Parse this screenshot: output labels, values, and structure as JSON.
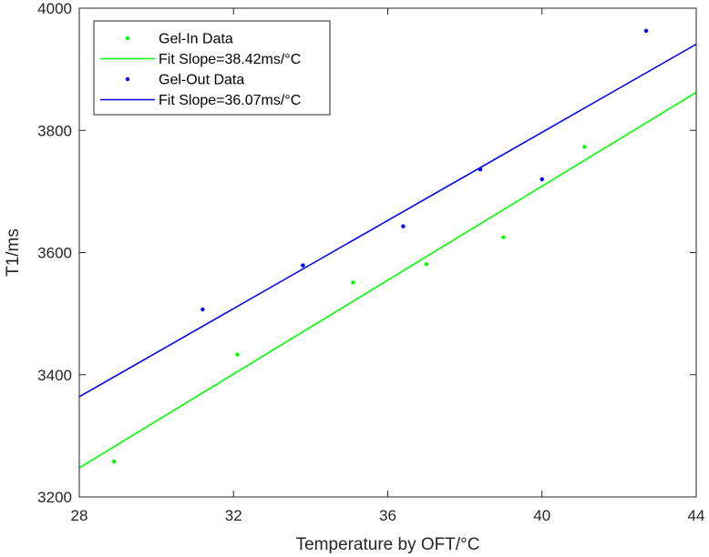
{
  "chart_data": {
    "type": "scatter",
    "xlabel": "Temperature by OFT/°C",
    "ylabel": "T1/ms",
    "xlim": [
      28,
      44
    ],
    "ylim": [
      3200,
      4000
    ],
    "xticks": [
      28,
      32,
      36,
      40,
      44
    ],
    "yticks": [
      3200,
      3400,
      3600,
      3800,
      4000
    ],
    "grid": false,
    "legend_position": "top-left",
    "series": [
      {
        "name": "Gel-In Data",
        "kind": "points",
        "color": "#00ff00",
        "points": [
          {
            "x": 28.9,
            "y": 3258
          },
          {
            "x": 32.1,
            "y": 3433
          },
          {
            "x": 35.1,
            "y": 3551
          },
          {
            "x": 37.0,
            "y": 3581
          },
          {
            "x": 39.0,
            "y": 3625
          },
          {
            "x": 41.1,
            "y": 3773
          }
        ]
      },
      {
        "name": "Fit Slope=38.42ms/°C",
        "kind": "line",
        "color": "#00ff00",
        "slope": 38.42,
        "intercept": 2171.8
      },
      {
        "name": "Gel-Out Data",
        "kind": "points",
        "color": "#0000ff",
        "points": [
          {
            "x": 31.2,
            "y": 3507
          },
          {
            "x": 33.8,
            "y": 3579
          },
          {
            "x": 36.4,
            "y": 3643
          },
          {
            "x": 38.4,
            "y": 3736
          },
          {
            "x": 40.0,
            "y": 3720
          },
          {
            "x": 42.7,
            "y": 3963
          }
        ]
      },
      {
        "name": "Fit Slope=36.07ms/°C",
        "kind": "line",
        "color": "#0000ff",
        "slope": 36.07,
        "intercept": 2354.0
      }
    ]
  }
}
